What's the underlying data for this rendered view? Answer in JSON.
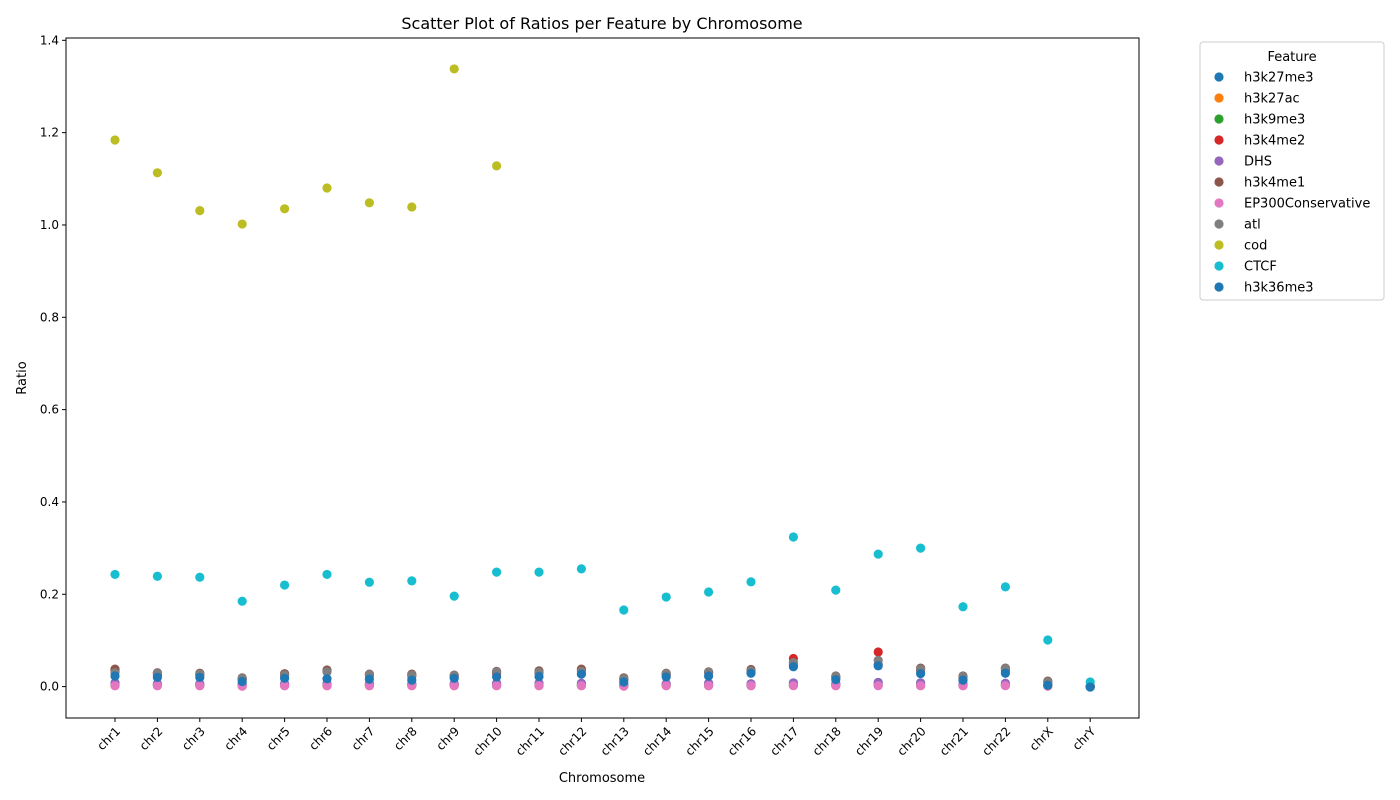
{
  "chart_data": {
    "type": "scatter",
    "title": "Scatter Plot of Ratios per Feature by Chromosome",
    "xlabel": "Chromosome",
    "ylabel": "Ratio",
    "ylim": [
      -0.068,
      1.405
    ],
    "yticks": [
      "0.0",
      "0.2",
      "0.4",
      "0.6",
      "0.8",
      "1.0",
      "1.2",
      "1.4"
    ],
    "ytick_values": [
      0,
      0.2,
      0.4,
      0.6,
      0.8,
      1.0,
      1.2,
      1.4
    ],
    "grid": false,
    "legend_title": "Feature",
    "legend_position": "outside-upper-right",
    "categories": [
      "chr1",
      "chr2",
      "chr3",
      "chr4",
      "chr5",
      "chr6",
      "chr7",
      "chr8",
      "chr9",
      "chr10",
      "chr11",
      "chr12",
      "chr13",
      "chr14",
      "chr15",
      "chr16",
      "chr17",
      "chr18",
      "chr19",
      "chr20",
      "chr21",
      "chr22",
      "chrX",
      "chrY"
    ],
    "series": [
      {
        "name": "h3k27me3",
        "color": "#1f77b4",
        "values": [
          0.008,
          0.006,
          0.006,
          0.005,
          0.006,
          0.006,
          0.006,
          0.006,
          0.006,
          0.007,
          0.007,
          0.007,
          0.004,
          0.006,
          0.007,
          0.006,
          0.008,
          0.006,
          0.009,
          0.008,
          0.005,
          0.007,
          0.004,
          0.0
        ]
      },
      {
        "name": "h3k27ac",
        "color": "#ff7f0e",
        "values": [
          0.002,
          0.002,
          0.002,
          0.001,
          0.002,
          0.002,
          0.002,
          0.002,
          0.002,
          0.002,
          0.002,
          0.002,
          0.001,
          0.002,
          0.002,
          0.002,
          0.003,
          0.002,
          0.003,
          0.002,
          0.002,
          0.003,
          0.001,
          0.0
        ]
      },
      {
        "name": "h3k9me3",
        "color": "#2ca02c",
        "values": [
          0.003,
          0.003,
          0.003,
          0.003,
          0.003,
          0.003,
          0.003,
          0.003,
          0.003,
          0.003,
          0.003,
          0.003,
          0.002,
          0.003,
          0.003,
          0.003,
          0.003,
          0.003,
          0.003,
          0.003,
          0.003,
          0.003,
          0.002,
          0.0
        ]
      },
      {
        "name": "h3k4me2",
        "color": "#d62728",
        "values": [
          0.034,
          0.025,
          0.025,
          0.015,
          0.025,
          0.033,
          0.024,
          0.023,
          0.021,
          0.028,
          0.03,
          0.035,
          0.015,
          0.025,
          0.03,
          0.035,
          0.061,
          0.02,
          0.075,
          0.035,
          0.02,
          0.035,
          0.01,
          0.0
        ]
      },
      {
        "name": "DHS",
        "color": "#9467bd",
        "values": [
          0.007,
          0.006,
          0.006,
          0.005,
          0.006,
          0.006,
          0.006,
          0.006,
          0.006,
          0.007,
          0.007,
          0.007,
          0.004,
          0.006,
          0.007,
          0.006,
          0.008,
          0.006,
          0.009,
          0.008,
          0.005,
          0.007,
          0.004,
          0.0
        ]
      },
      {
        "name": "h3k4me1",
        "color": "#8c564b",
        "values": [
          0.038,
          0.03,
          0.029,
          0.019,
          0.028,
          0.036,
          0.027,
          0.027,
          0.025,
          0.033,
          0.034,
          0.038,
          0.019,
          0.029,
          0.032,
          0.037,
          0.047,
          0.023,
          0.048,
          0.04,
          0.023,
          0.04,
          0.012,
          0.0
        ]
      },
      {
        "name": "EP300Conservative",
        "color": "#e377c2",
        "values": [
          0.002,
          0.002,
          0.002,
          0.001,
          0.002,
          0.002,
          0.002,
          0.002,
          0.002,
          0.002,
          0.002,
          0.002,
          0.001,
          0.002,
          0.002,
          0.002,
          0.002,
          0.002,
          0.002,
          0.002,
          0.002,
          0.002,
          0.001,
          0.0
        ]
      },
      {
        "name": "atl",
        "color": "#7f7f7f",
        "values": [
          0.03,
          0.029,
          0.027,
          0.018,
          0.025,
          0.032,
          0.026,
          0.025,
          0.024,
          0.032,
          0.031,
          0.033,
          0.017,
          0.028,
          0.031,
          0.034,
          0.052,
          0.022,
          0.057,
          0.038,
          0.022,
          0.039,
          0.01,
          0.0
        ]
      },
      {
        "name": "cod",
        "color": "#bcbd22",
        "values": [
          1.184,
          1.113,
          1.031,
          1.002,
          1.035,
          1.08,
          1.048,
          1.039,
          1.338,
          1.128,
          null,
          null,
          null,
          null,
          null,
          null,
          null,
          null,
          null,
          null,
          null,
          null,
          null,
          null
        ]
      },
      {
        "name": "CTCF",
        "color": "#17becf",
        "values": [
          0.243,
          0.239,
          0.237,
          0.185,
          0.22,
          0.243,
          0.226,
          0.229,
          0.196,
          0.248,
          0.248,
          0.255,
          0.166,
          0.194,
          0.205,
          0.227,
          0.324,
          0.209,
          0.287,
          0.3,
          0.173,
          0.216,
          0.101,
          0.01
        ]
      },
      {
        "name": "h3k36me3",
        "color": "#1f77b4",
        "values": [
          0.023,
          0.02,
          0.02,
          0.011,
          0.018,
          0.017,
          0.016,
          0.014,
          0.018,
          0.021,
          0.022,
          0.027,
          0.01,
          0.021,
          0.023,
          0.029,
          0.043,
          0.015,
          0.045,
          0.028,
          0.014,
          0.029,
          0.003,
          -0.001
        ]
      }
    ]
  }
}
